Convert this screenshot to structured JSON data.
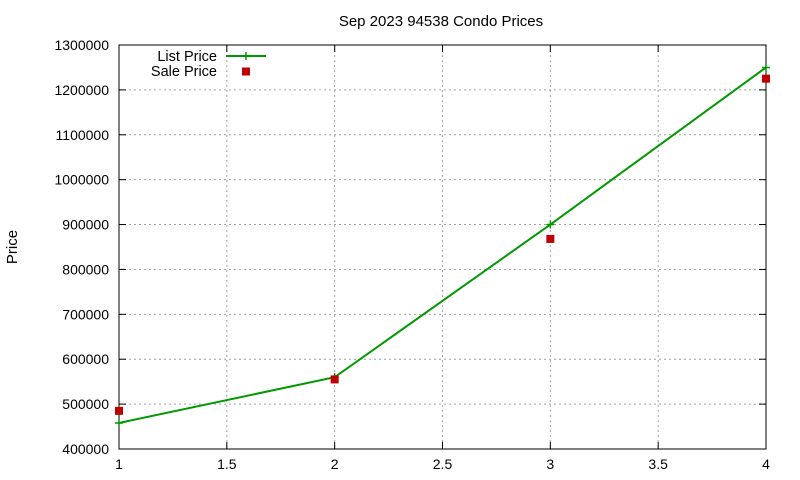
{
  "chart_data": {
    "type": "line",
    "title": "Sep 2023 94538 Condo Prices",
    "xlabel": "",
    "ylabel": "Price",
    "xlim": [
      1,
      4
    ],
    "ylim": [
      400000,
      1300000
    ],
    "x_ticks": [
      "1",
      "1.5",
      "2",
      "2.5",
      "3",
      "3.5",
      "4"
    ],
    "y_ticks": [
      "400000",
      "500000",
      "600000",
      "700000",
      "800000",
      "900000",
      "1000000",
      "1100000",
      "1200000",
      "1300000"
    ],
    "grid": true,
    "legend_position": "top-left",
    "series": [
      {
        "name": "List Price",
        "style": "line+cross",
        "color": "#009900",
        "x": [
          1,
          2,
          3,
          4
        ],
        "y": [
          458000,
          560000,
          900000,
          1250000
        ]
      },
      {
        "name": "Sale Price",
        "style": "square-points",
        "color": "#c00000",
        "x": [
          1,
          2,
          3,
          4
        ],
        "y": [
          485000,
          555000,
          868000,
          1225000
        ]
      }
    ]
  }
}
